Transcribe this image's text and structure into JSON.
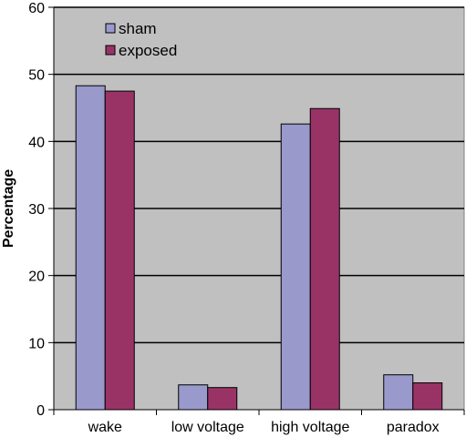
{
  "chart_data": {
    "type": "bar",
    "title": "",
    "xlabel": "",
    "ylabel": "Percentage",
    "ylim": [
      0,
      60
    ],
    "yticks": [
      0,
      10,
      20,
      30,
      40,
      50,
      60
    ],
    "grid": true,
    "legend_position": "top-left",
    "categories": [
      "wake",
      "low voltage",
      "high voltage",
      "paradox"
    ],
    "series": [
      {
        "name": "sham",
        "values": [
          48.3,
          3.7,
          42.6,
          5.2
        ],
        "color": "#9999cc"
      },
      {
        "name": "exposed",
        "values": [
          47.5,
          3.3,
          44.9,
          4.0
        ],
        "color": "#993366"
      }
    ],
    "plot_background": "#c0c0c0"
  }
}
